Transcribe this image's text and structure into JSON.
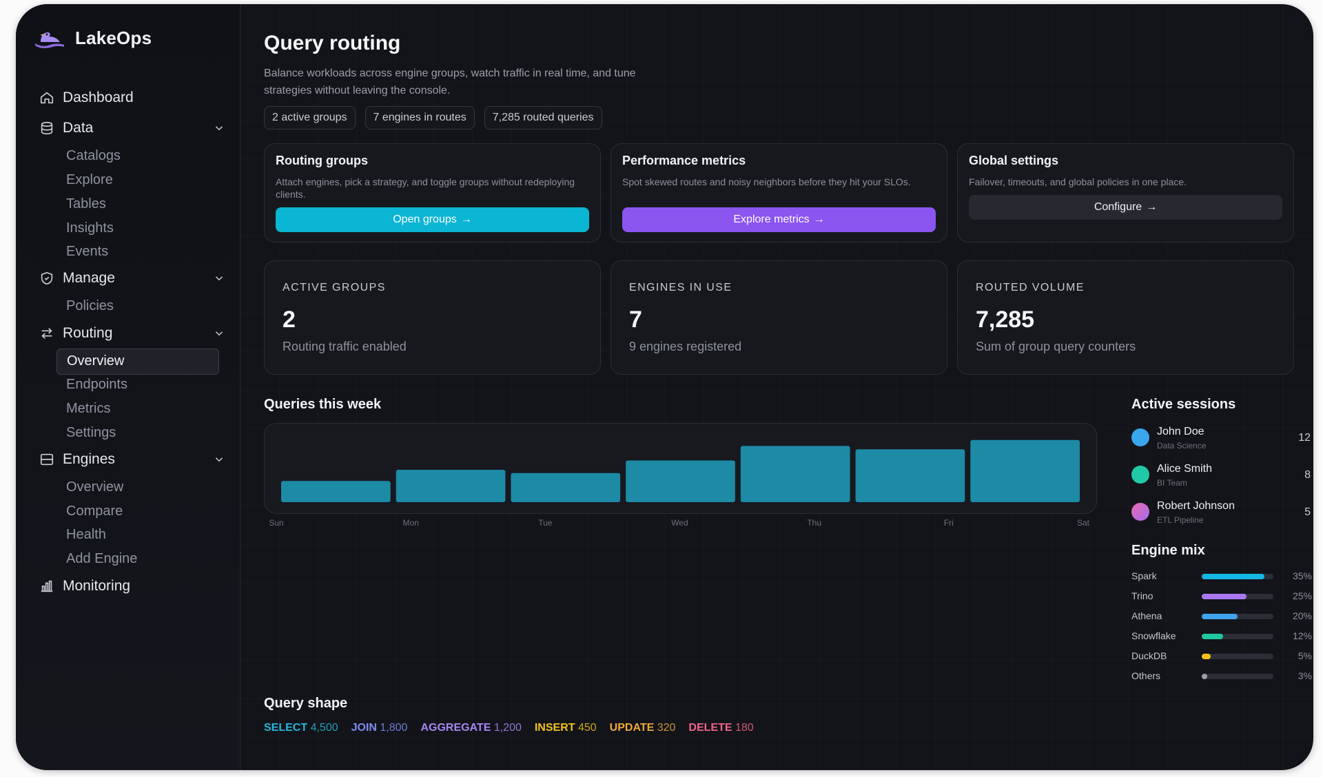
{
  "brand": {
    "name": "LakeOps"
  },
  "sidebar": {
    "items": [
      {
        "label": "Dashboard",
        "icon": "home-icon"
      },
      {
        "label": "Data",
        "icon": "database-icon",
        "children": [
          "Catalogs",
          "Explore",
          "Tables",
          "Insights",
          "Events"
        ]
      },
      {
        "label": "Manage",
        "icon": "shield-icon",
        "children": [
          "Policies"
        ]
      },
      {
        "label": "Routing",
        "icon": "swap-arrows-icon",
        "children": [
          "Overview",
          "Endpoints",
          "Metrics",
          "Settings"
        ],
        "active_child": "Overview"
      },
      {
        "label": "Engines",
        "icon": "server-icon",
        "children": [
          "Overview",
          "Compare",
          "Health",
          "Add Engine"
        ]
      },
      {
        "label": "Monitoring",
        "icon": "bar-chart-icon"
      }
    ]
  },
  "header": {
    "title": "Query routing",
    "subtitle": "Balance workloads across engine groups, watch traffic in real time, and tune strategies without leaving the console.",
    "chips": [
      "2 active groups",
      "7 engines in routes",
      "7,285 routed queries"
    ]
  },
  "action_cards": [
    {
      "title": "Routing groups",
      "desc": "Attach engines, pick a strategy, and toggle groups without redeploying clients.",
      "button": "Open groups",
      "color": "#0bb5d4"
    },
    {
      "title": "Performance metrics",
      "desc": "Spot skewed routes and noisy neighbors before they hit your SLOs.",
      "button": "Explore metrics",
      "color": "#8b55f0"
    },
    {
      "title": "Global settings",
      "desc": "Failover, timeouts, and global policies in one place.",
      "button": "Configure",
      "color": "#262930"
    }
  ],
  "stats": [
    {
      "label": "ACTIVE GROUPS",
      "value": "2",
      "note": "Routing traffic enabled"
    },
    {
      "label": "ENGINES IN USE",
      "value": "7",
      "note": "9 engines registered"
    },
    {
      "label": "ROUTED VOLUME",
      "value": "7,285",
      "note": "Sum of group query counters"
    }
  ],
  "chart_title": "Queries this week",
  "chart_data": {
    "type": "bar",
    "categories": [
      "Sun",
      "Mon",
      "Tue",
      "Wed",
      "Thu",
      "Fri",
      "Sat"
    ],
    "values": [
      32,
      49,
      44,
      63,
      85,
      80,
      94
    ],
    "ylim": [
      0,
      100
    ],
    "color": "#1d8aa6",
    "grid": false
  },
  "sessions_title": "Active sessions",
  "sessions": [
    {
      "name": "John Doe",
      "team": "Data Science",
      "count": "12",
      "color": "#3aa6ee"
    },
    {
      "name": "Alice Smith",
      "team": "BI Team",
      "count": "8",
      "color": "#22c9a6"
    },
    {
      "name": "Robert Johnson",
      "team": "ETL Pipeline",
      "count": "5",
      "color": "#c86ad8"
    }
  ],
  "mix_title": "Engine mix",
  "engine_mix": [
    {
      "name": "Spark",
      "pct": 35,
      "label": "35%",
      "color": "#14b6e2"
    },
    {
      "name": "Trino",
      "pct": 25,
      "label": "25%",
      "color": "#a978f2"
    },
    {
      "name": "Athena",
      "pct": 20,
      "label": "20%",
      "color": "#3fa3ec"
    },
    {
      "name": "Snowflake",
      "pct": 12,
      "label": "12%",
      "color": "#1fc7a2"
    },
    {
      "name": "DuckDB",
      "pct": 5,
      "label": "5%",
      "color": "#f4c21c"
    },
    {
      "name": "Others",
      "pct": 3,
      "label": "3%",
      "color": "#9aa0aa"
    }
  ],
  "query_shape_title": "Query shape",
  "query_shape": [
    {
      "kw": "SELECT",
      "val": "4,500",
      "color": "#25b7dd"
    },
    {
      "kw": "JOIN",
      "val": "1,800",
      "color": "#7f8df2"
    },
    {
      "kw": "AGGREGATE",
      "val": "1,200",
      "color": "#a987f2"
    },
    {
      "kw": "INSERT",
      "val": "450",
      "color": "#f4c21c"
    },
    {
      "kw": "UPDATE",
      "val": "320",
      "color": "#f0a93c"
    },
    {
      "kw": "DELETE",
      "val": "180",
      "color": "#f0648a"
    }
  ]
}
